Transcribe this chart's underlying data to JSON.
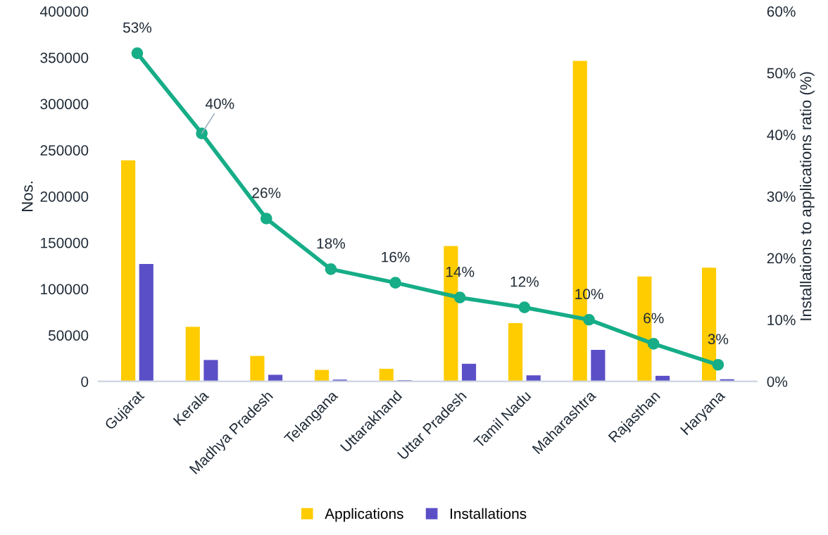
{
  "chart_data": {
    "type": "bar",
    "ylabel": "Nos.",
    "y2label": "Installations to applications ratio (%)",
    "categories": [
      "Gujarat",
      "Kerala",
      "Madhya Pradesh",
      "Telangana",
      "Uttarakhand",
      "Uttar Pradesh",
      "Tamil Nadu",
      "Maharashtra",
      "Rajasthan",
      "Haryana"
    ],
    "series": [
      {
        "name": "Applications",
        "color": "#ffcc00",
        "values": [
          239000,
          59000,
          27600,
          12500,
          13700,
          146400,
          63000,
          346300,
          113500,
          123000
        ]
      },
      {
        "name": "Installations",
        "color": "#5b4fc7",
        "values": [
          127000,
          23200,
          7200,
          2000,
          1400,
          19100,
          6600,
          34100,
          6100,
          2300
        ]
      },
      {
        "type": "line",
        "axis": "y2",
        "color": "#16ad87",
        "marker": "circle",
        "values": [
          53.2,
          40.2,
          26.4,
          18.2,
          16.0,
          13.6,
          12.0,
          10.0,
          6.1,
          2.7
        ],
        "value_labels": [
          "53%",
          "40%",
          "26%",
          "18%",
          "16%",
          "14%",
          "12%",
          "10%",
          "6%",
          "3%"
        ]
      }
    ],
    "ylim": [
      0,
      400000
    ],
    "yticks": [
      0,
      50000,
      100000,
      150000,
      200000,
      250000,
      300000,
      350000,
      400000
    ],
    "y2lim": [
      0,
      60
    ],
    "y2ticks": [
      {
        "value": 0,
        "label": "0%"
      },
      {
        "value": 10,
        "label": "10%"
      },
      {
        "value": 20,
        "label": "20%"
      },
      {
        "value": 30,
        "label": "30%"
      },
      {
        "value": 40,
        "label": "40%"
      },
      {
        "value": 50,
        "label": "50%"
      },
      {
        "value": 60,
        "label": "60%"
      }
    ],
    "grid": false,
    "legend": "bottom"
  }
}
